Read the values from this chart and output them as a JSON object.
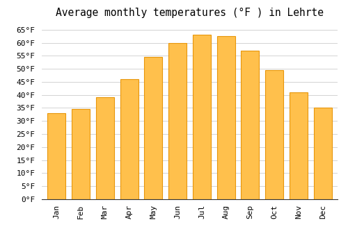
{
  "title": "Average monthly temperatures (°F ) in Lehrte",
  "months": [
    "Jan",
    "Feb",
    "Mar",
    "Apr",
    "May",
    "Jun",
    "Jul",
    "Aug",
    "Sep",
    "Oct",
    "Nov",
    "Dec"
  ],
  "values": [
    33,
    34.5,
    39,
    46,
    54.5,
    60,
    63,
    62.5,
    57,
    49.5,
    41,
    35
  ],
  "bar_color": "#FFC04C",
  "bar_edge_color": "#E8960A",
  "background_color": "#FFFFFF",
  "grid_color": "#CCCCCC",
  "ylim": [
    0,
    68
  ],
  "yticks": [
    0,
    5,
    10,
    15,
    20,
    25,
    30,
    35,
    40,
    45,
    50,
    55,
    60,
    65
  ],
  "title_fontsize": 10.5,
  "tick_fontsize": 8
}
